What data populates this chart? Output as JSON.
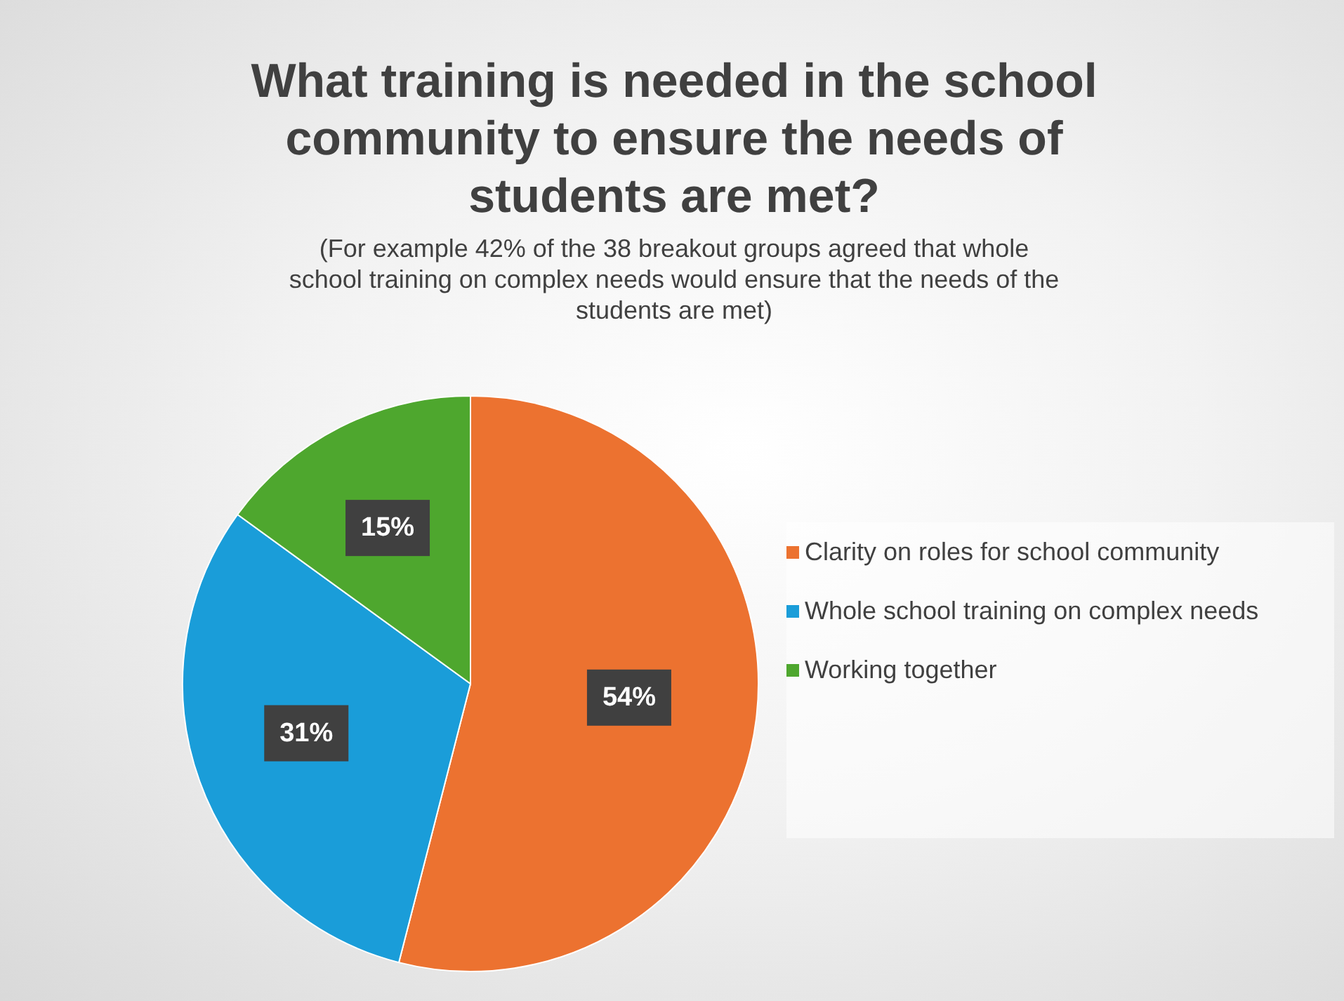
{
  "chart_data": {
    "type": "pie",
    "title": "What training is needed in the school community to ensure the needs of students are met?",
    "subtitle": "(For example 42% of the 38 breakout groups agreed that whole school training on complex needs would ensure that the needs of the students are met)",
    "categories": [
      "Clarity on roles for school community",
      "Whole school training on complex needs",
      "Working together"
    ],
    "values": [
      54,
      31,
      15
    ],
    "colors": [
      "#ec7230",
      "#1a9dd9",
      "#4ea72e"
    ],
    "value_labels": [
      "54%",
      "31%",
      "15%"
    ],
    "legend": "right"
  }
}
